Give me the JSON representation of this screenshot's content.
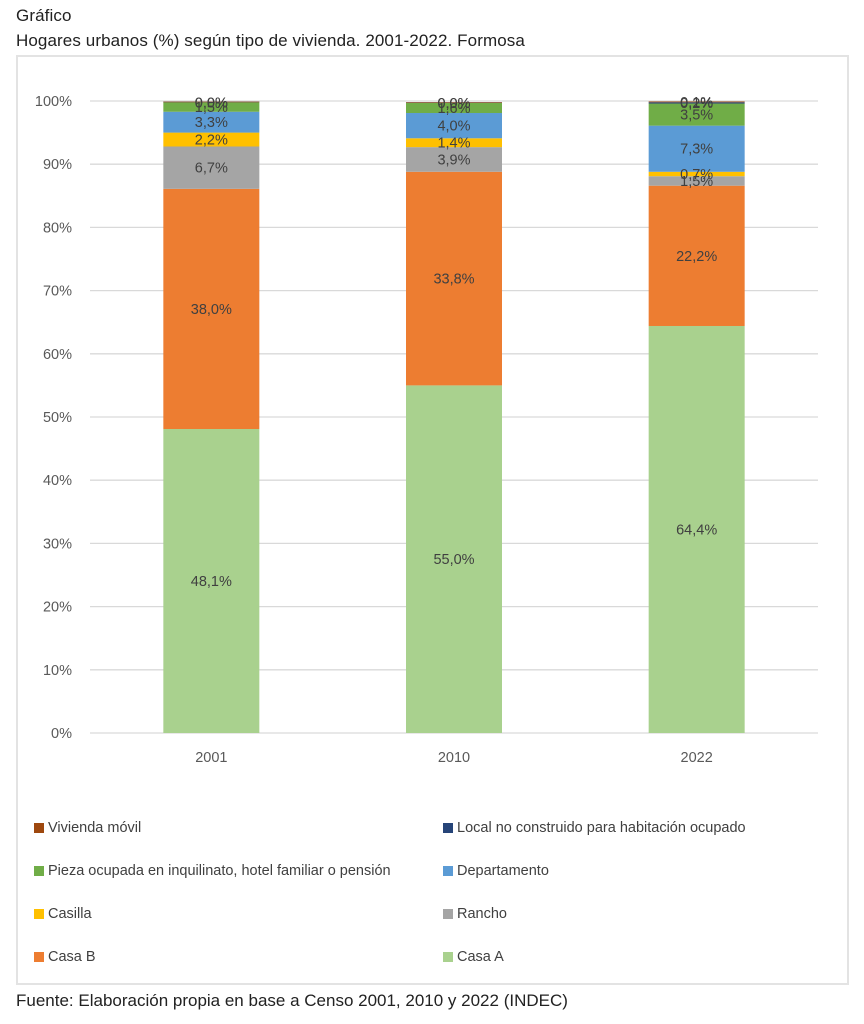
{
  "figure_label": "Gráfico",
  "figure_title": "Hogares urbanos (%) según tipo de vivienda. 2001-2022. Formosa",
  "source": "Fuente: Elaboración propia en base a Censo 2001, 2010 y 2022 (INDEC)",
  "chart_data": {
    "type": "bar",
    "stacked": true,
    "title": "Hogares urbanos (%) según tipo de vivienda. 2001-2022. Formosa",
    "xlabel": "",
    "ylabel": "",
    "ylim": [
      0,
      100
    ],
    "yticks": [
      "0%",
      "10%",
      "20%",
      "30%",
      "40%",
      "50%",
      "60%",
      "70%",
      "80%",
      "90%",
      "100%"
    ],
    "grid": true,
    "legend_position": "bottom",
    "categories": [
      "2001",
      "2010",
      "2022"
    ],
    "series": [
      {
        "name": "Casa A",
        "color": "#A9D18E",
        "values": [
          48.1,
          55.0,
          64.4
        ],
        "labels": [
          "48,1%",
          "55,0%",
          "64,4%"
        ]
      },
      {
        "name": "Casa B",
        "color": "#ED7D31",
        "values": [
          38.0,
          33.8,
          22.2
        ],
        "labels": [
          "38,0%",
          "33,8%",
          "22,2%"
        ]
      },
      {
        "name": "Rancho",
        "color": "#A5A5A5",
        "values": [
          6.7,
          3.9,
          1.5
        ],
        "labels": [
          "6,7%",
          "3,9%",
          "1,5%"
        ]
      },
      {
        "name": "Casilla",
        "color": "#FFC000",
        "values": [
          2.2,
          1.4,
          0.7
        ],
        "labels": [
          "2,2%",
          "1,4%",
          "0,7%"
        ]
      },
      {
        "name": "Departamento",
        "color": "#5B9BD5",
        "values": [
          3.3,
          4.0,
          7.3
        ],
        "labels": [
          "3,3%",
          "4,0%",
          "7,3%"
        ]
      },
      {
        "name": "Pieza ocupada en inquilinato, hotel familiar o pensión",
        "color": "#70AD47",
        "values": [
          1.5,
          1.6,
          3.5
        ],
        "labels": [
          "1,5%",
          "1,6%",
          "3,5%"
        ]
      },
      {
        "name": "Local no construido para habitación ocupado",
        "color": "#264478",
        "values": [
          0.0,
          0.0,
          0.2
        ],
        "labels": [
          "0,0%",
          "0,0%",
          "0,2%"
        ]
      },
      {
        "name": "Vivienda móvil",
        "color": "#9E480E",
        "values": [
          0.0,
          0.0,
          0.1
        ],
        "labels": [
          "0,0%",
          "0,0%",
          "0,1%"
        ]
      }
    ],
    "legend_order": [
      "Vivienda móvil",
      "Local no construido para habitación ocupado",
      "Pieza ocupada en inquilinato, hotel familiar o pensión",
      "Departamento",
      "Casilla",
      "Rancho",
      "Casa B",
      "Casa A"
    ]
  }
}
